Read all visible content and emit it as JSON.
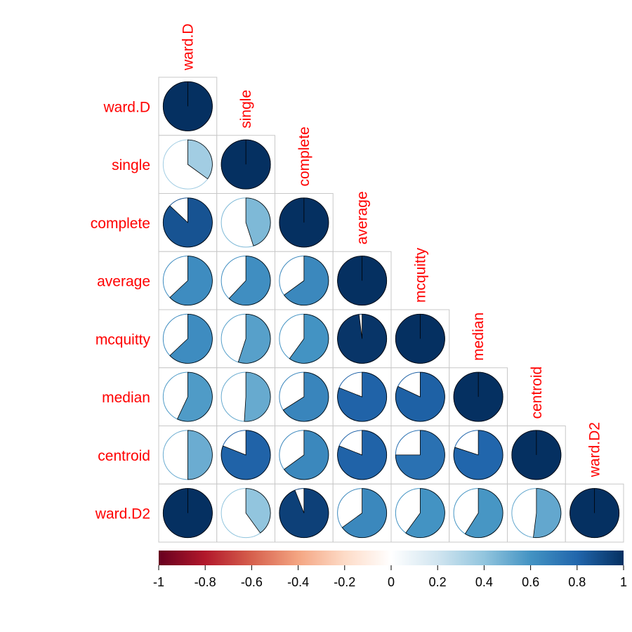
{
  "chart_data": {
    "type": "heatmap",
    "style": "lower-triangle correlation matrix with pie glyphs",
    "variables": [
      "ward.D",
      "single",
      "complete",
      "average",
      "mcquitty",
      "median",
      "centroid",
      "ward.D2"
    ],
    "matrix": [
      [
        1.0,
        null,
        null,
        null,
        null,
        null,
        null,
        null
      ],
      [
        0.35,
        1.0,
        null,
        null,
        null,
        null,
        null,
        null
      ],
      [
        0.87,
        0.45,
        1.0,
        null,
        null,
        null,
        null,
        null
      ],
      [
        0.63,
        0.62,
        0.65,
        1.0,
        null,
        null,
        null,
        null
      ],
      [
        0.63,
        0.55,
        0.6,
        0.98,
        1.0,
        null,
        null,
        null
      ],
      [
        0.57,
        0.51,
        0.66,
        0.81,
        0.82,
        1.0,
        null,
        null
      ],
      [
        0.5,
        0.81,
        0.65,
        0.81,
        0.75,
        0.8,
        1.0,
        null
      ],
      [
        1.0,
        0.4,
        0.94,
        0.65,
        0.6,
        0.59,
        0.52,
        1.0
      ]
    ],
    "colorbar": {
      "range": [
        -1,
        1
      ],
      "ticks": [
        "-1",
        "-0.8",
        "-0.6",
        "-0.4",
        "-0.2",
        "0",
        "0.2",
        "0.4",
        "0.6",
        "0.8",
        "1"
      ],
      "palette": [
        "#67001F",
        "#B2182B",
        "#D6604D",
        "#F4A582",
        "#FDDBC7",
        "#FFFFFF",
        "#D1E5F0",
        "#92C5DE",
        "#4393C3",
        "#2166AC",
        "#053061"
      ]
    },
    "label_color": "#FF0000",
    "legend": "bottom"
  }
}
